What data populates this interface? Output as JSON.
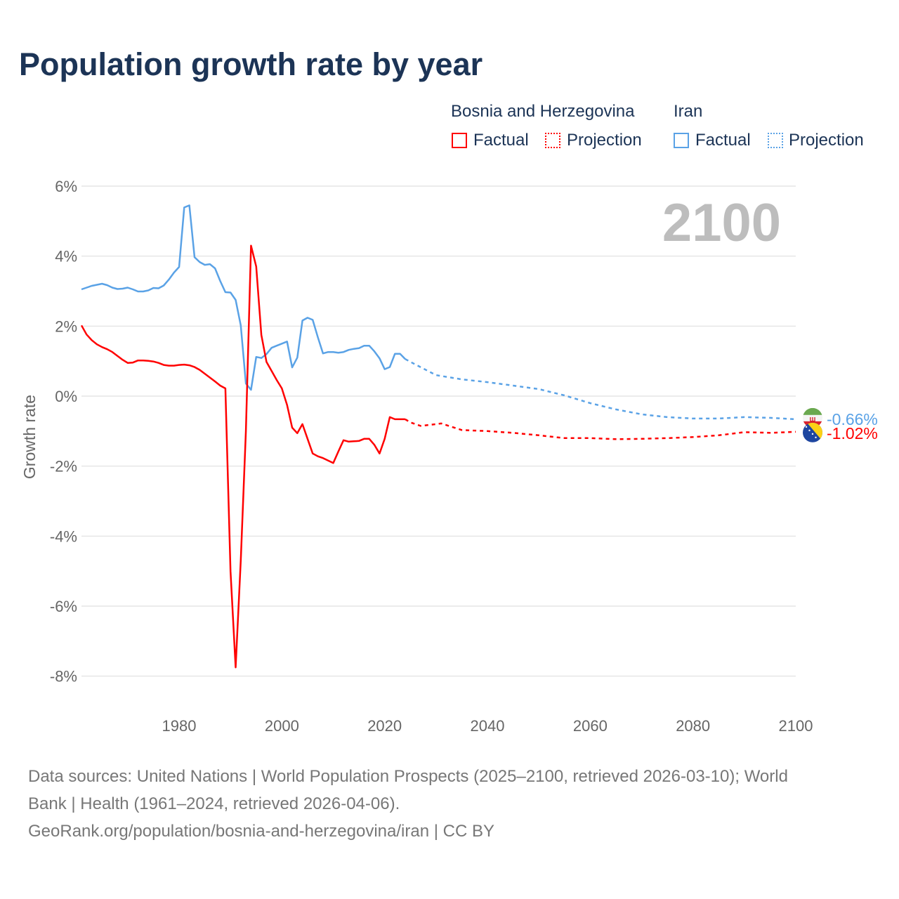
{
  "title": "Population growth rate by year",
  "legend": {
    "groups": [
      {
        "country": "Bosnia and Herzegovina",
        "factual": "Factual",
        "projection": "Projection",
        "color": "#ff0000"
      },
      {
        "country": "Iran",
        "factual": "Factual",
        "projection": "Projection",
        "color": "#5aa2e6"
      }
    ]
  },
  "year_display": "2100",
  "footer": {
    "line1": "Data sources: United Nations | World Population Prospects (2025–2100, retrieved 2026-03-10); World",
    "line2": "Bank | Health (1961–2024, retrieved 2026-04-06).",
    "line3": "GeoRank.org/population/bosnia-and-herzegovina/iran | CC BY"
  },
  "chart_data": {
    "type": "line",
    "title": "Population growth rate by year",
    "xlabel": "",
    "ylabel": "Growth rate",
    "xlim": [
      1961,
      2100
    ],
    "ylim": [
      -9,
      6
    ],
    "x_ticks": [
      1980,
      2000,
      2020,
      2040,
      2060,
      2080,
      2100
    ],
    "x_tick_labels": [
      "1980",
      "2000",
      "2020",
      "2040",
      "2060",
      "2080",
      "2100"
    ],
    "y_ticks": [
      6,
      4,
      2,
      0,
      -2,
      -4,
      -6,
      -8
    ],
    "y_tick_labels": [
      "6%",
      "4%",
      "2%",
      "0%",
      "-2%",
      "-4%",
      "-6%",
      "-8%"
    ],
    "grid": true,
    "series": [
      {
        "name": "Iran",
        "color": "#5aa2e6",
        "end_label": "-0.66%",
        "factual": {
          "x": [
            1961,
            1962,
            1963,
            1964,
            1965,
            1966,
            1967,
            1968,
            1969,
            1970,
            1971,
            1972,
            1973,
            1974,
            1975,
            1976,
            1977,
            1978,
            1979,
            1980,
            1981,
            1982,
            1983,
            1984,
            1985,
            1986,
            1987,
            1988,
            1989,
            1990,
            1991,
            1992,
            1993,
            1994,
            1995,
            1996,
            1997,
            1998,
            1999,
            2000,
            2001,
            2002,
            2003,
            2004,
            2005,
            2006,
            2007,
            2008,
            2009,
            2010,
            2011,
            2012,
            2013,
            2014,
            2015,
            2016,
            2017,
            2018,
            2019,
            2020,
            2021,
            2022,
            2023,
            2024
          ],
          "y": [
            3.05,
            3.1,
            3.15,
            3.18,
            3.21,
            3.17,
            3.1,
            3.06,
            3.07,
            3.1,
            3.05,
            2.99,
            2.99,
            3.02,
            3.09,
            3.08,
            3.16,
            3.33,
            3.53,
            3.69,
            5.39,
            5.45,
            3.97,
            3.83,
            3.75,
            3.77,
            3.65,
            3.29,
            2.97,
            2.96,
            2.75,
            2.02,
            0.36,
            0.18,
            1.12,
            1.09,
            1.2,
            1.38,
            1.44,
            1.5,
            1.56,
            0.82,
            1.1,
            2.16,
            2.24,
            2.18,
            1.68,
            1.22,
            1.26,
            1.26,
            1.24,
            1.26,
            1.32,
            1.35,
            1.37,
            1.44,
            1.44,
            1.28,
            1.08,
            0.77,
            0.83,
            1.21,
            1.21,
            1.06
          ]
        },
        "projection": {
          "x": [
            2024,
            2025,
            2030,
            2035,
            2040,
            2045,
            2050,
            2055,
            2060,
            2065,
            2070,
            2075,
            2080,
            2085,
            2090,
            2095,
            2100
          ],
          "y": [
            1.06,
            0.98,
            0.6,
            0.48,
            0.4,
            0.3,
            0.2,
            0.02,
            -0.2,
            -0.38,
            -0.52,
            -0.6,
            -0.64,
            -0.64,
            -0.6,
            -0.62,
            -0.66
          ]
        }
      },
      {
        "name": "Bosnia and Herzegovina",
        "color": "#ff0000",
        "end_label": "-1.02%",
        "factual": {
          "x": [
            1961,
            1962,
            1963,
            1964,
            1965,
            1966,
            1967,
            1968,
            1969,
            1970,
            1971,
            1972,
            1973,
            1974,
            1975,
            1976,
            1977,
            1978,
            1979,
            1980,
            1981,
            1982,
            1983,
            1984,
            1985,
            1986,
            1987,
            1988,
            1989,
            1990,
            1991,
            1992,
            1993,
            1994,
            1995,
            1996,
            1997,
            1998,
            1999,
            2000,
            2001,
            2002,
            2003,
            2004,
            2005,
            2006,
            2007,
            2008,
            2009,
            2010,
            2011,
            2012,
            2013,
            2014,
            2015,
            2016,
            2017,
            2018,
            2019,
            2020,
            2021,
            2022,
            2023,
            2024
          ],
          "y": [
            2.02,
            1.76,
            1.6,
            1.48,
            1.4,
            1.34,
            1.26,
            1.15,
            1.04,
            0.95,
            0.96,
            1.02,
            1.02,
            1.01,
            0.99,
            0.95,
            0.89,
            0.87,
            0.87,
            0.89,
            0.9,
            0.88,
            0.83,
            0.75,
            0.64,
            0.53,
            0.42,
            0.3,
            0.22,
            -5.0,
            -7.75,
            -4.7,
            -1.0,
            4.3,
            3.7,
            1.75,
            0.98,
            0.72,
            0.46,
            0.22,
            -0.25,
            -0.9,
            -1.06,
            -0.8,
            -1.22,
            -1.64,
            -1.72,
            -1.77,
            -1.84,
            -1.91,
            -1.58,
            -1.26,
            -1.3,
            -1.29,
            -1.28,
            -1.22,
            -1.22,
            -1.39,
            -1.64,
            -1.22,
            -0.6,
            -0.66,
            -0.66,
            -0.66
          ]
        },
        "projection": {
          "x": [
            2024,
            2025,
            2027,
            2030,
            2031,
            2035,
            2040,
            2045,
            2050,
            2055,
            2060,
            2065,
            2070,
            2075,
            2080,
            2085,
            2090,
            2095,
            2100
          ],
          "y": [
            -0.66,
            -0.75,
            -0.85,
            -0.8,
            -0.78,
            -0.97,
            -1.0,
            -1.05,
            -1.12,
            -1.2,
            -1.2,
            -1.23,
            -1.22,
            -1.2,
            -1.17,
            -1.12,
            -1.03,
            -1.05,
            -1.02
          ]
        }
      }
    ]
  }
}
